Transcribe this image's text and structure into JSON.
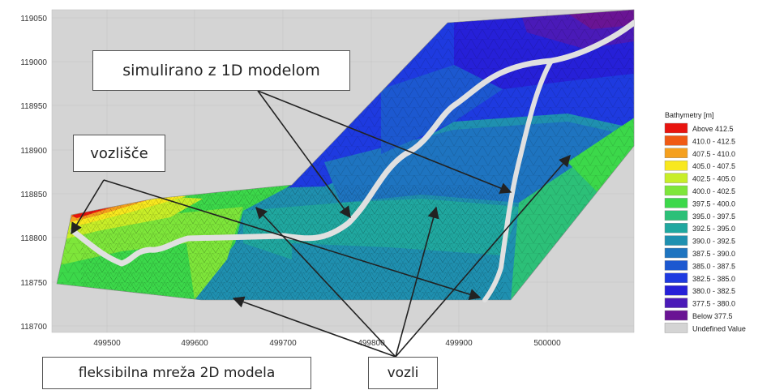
{
  "axes": {
    "y_ticks": [
      "119050",
      "119000",
      "118950",
      "118900",
      "118850",
      "118800",
      "118750",
      "118700"
    ],
    "x_ticks": [
      "499500",
      "499600",
      "499700",
      "499800",
      "499900",
      "500000"
    ]
  },
  "legend": {
    "title": "Bathymetry [m]",
    "entries": [
      {
        "label": "Above  412.5",
        "color": "#e8140f"
      },
      {
        "label": "410.0 - 412.5",
        "color": "#f05a14"
      },
      {
        "label": "407.5 - 410.0",
        "color": "#f5a01e"
      },
      {
        "label": "405.0 - 407.5",
        "color": "#f8e81e"
      },
      {
        "label": "402.5 - 405.0",
        "color": "#c8ee28"
      },
      {
        "label": "400.0 - 402.5",
        "color": "#7ee63a"
      },
      {
        "label": "397.5 - 400.0",
        "color": "#3cd84a"
      },
      {
        "label": "395.0 - 397.5",
        "color": "#2cc078"
      },
      {
        "label": "392.5 - 395.0",
        "color": "#20a8a0"
      },
      {
        "label": "390.0 - 392.5",
        "color": "#1f90b0"
      },
      {
        "label": "387.5 - 390.0",
        "color": "#1e74c0"
      },
      {
        "label": "385.0 - 387.5",
        "color": "#1c58d0"
      },
      {
        "label": "382.5 - 385.0",
        "color": "#1e3ae0"
      },
      {
        "label": "380.0 - 382.5",
        "color": "#2620d8"
      },
      {
        "label": "377.5 - 380.0",
        "color": "#4a1ab8"
      },
      {
        "label": "Below  377.5",
        "color": "#6a1494"
      },
      {
        "label": "Undefined Value",
        "color": "#d4d4d4"
      }
    ]
  },
  "annotations": {
    "simulirano": "simulirano z 1D modelom",
    "vozlisce": "vozlišče",
    "fleksibilna": "fleksibilna mreža 2D modela",
    "vozli": "vozli"
  },
  "colors": {
    "plot_background": "#d4d4d4",
    "channel": "#e0e0e0",
    "arrow": "#222222"
  }
}
